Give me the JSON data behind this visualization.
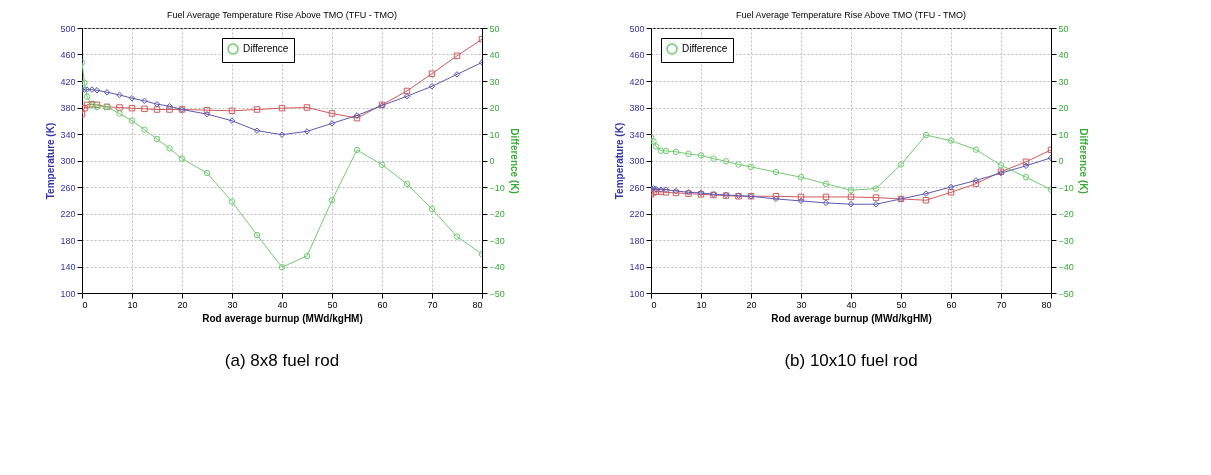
{
  "chart_data": [
    {
      "type": "line",
      "title": "Fuel Average Temperature Rise Above TMO (TFU - TMO)",
      "xlabel": "Rod average burnup (MWd/kgHM)",
      "ylabel": "Temperature (K)",
      "y2label": "Difference (K)",
      "x": [
        0,
        0.5,
        1,
        2,
        3,
        5,
        7.5,
        10,
        12.5,
        15,
        17.5,
        20,
        25,
        30,
        35,
        40,
        45,
        50,
        55,
        60,
        65,
        70,
        75,
        80
      ],
      "xlim": [
        0,
        80
      ],
      "xticks": [
        0,
        10,
        20,
        30,
        40,
        50,
        60,
        70,
        80
      ],
      "ylim": [
        100,
        500
      ],
      "yticks": [
        100,
        140,
        180,
        220,
        260,
        300,
        340,
        380,
        420,
        460,
        500
      ],
      "y2lim": [
        -50,
        50
      ],
      "y2ticks": [
        -50,
        -40,
        -30,
        -20,
        -10,
        0,
        10,
        20,
        30,
        40,
        50
      ],
      "grid": true,
      "legend": "top",
      "line_style": "solid",
      "series": [
        {
          "color": "#d05a5a",
          "marker": "square",
          "values": [
            370,
            379,
            384,
            385,
            384,
            381,
            380,
            379,
            378,
            377,
            377,
            377,
            376,
            375,
            377,
            379,
            380,
            371,
            364,
            384,
            405,
            431,
            458,
            483
          ]
        },
        {
          "color": "#5a5ab4",
          "marker": "diamond",
          "values": [
            407,
            407,
            407,
            407,
            406,
            403,
            399,
            394,
            390,
            385,
            382,
            377,
            370,
            360,
            345,
            339,
            344,
            356,
            368,
            383,
            397,
            412,
            430,
            448
          ]
        },
        {
          "name": "Difference",
          "color": "#70cc70",
          "marker": "circle",
          "axis": "y2",
          "values": [
            37,
            29.3,
            24.1,
            21,
            20.2,
            20.2,
            17.7,
            15,
            11.6,
            8.1,
            4.6,
            0.7,
            -4.7,
            -15.5,
            -28.1,
            -40.3,
            -36,
            -15,
            4,
            -1.6,
            -8.8,
            -18.3,
            -28.7,
            -35.3
          ]
        }
      ],
      "annotations": [
        "(a) 8x8 fuel rod"
      ]
    },
    {
      "type": "line",
      "title": "Fuel Average Temperature Rise Above TMO (TFU - TMO)",
      "xlabel": "Rod average burnup (MWd/kgHM)",
      "ylabel": "Temperature (K)",
      "y2label": "Difference (K)",
      "x": [
        0,
        0.5,
        1,
        2,
        3,
        5,
        7.5,
        10,
        12.5,
        15,
        17.5,
        20,
        25,
        30,
        35,
        40,
        45,
        50,
        55,
        60,
        65,
        70,
        75,
        80
      ],
      "xlim": [
        0,
        80
      ],
      "xticks": [
        0,
        10,
        20,
        30,
        40,
        50,
        60,
        70,
        80
      ],
      "ylim": [
        100,
        500
      ],
      "yticks": [
        100,
        140,
        180,
        220,
        260,
        300,
        340,
        380,
        420,
        460,
        500
      ],
      "y2lim": [
        -50,
        50
      ],
      "y2ticks": [
        -50,
        -40,
        -30,
        -20,
        -10,
        0,
        10,
        20,
        30,
        40,
        50
      ],
      "grid": true,
      "legend": "top left",
      "line_style": "solid",
      "series": [
        {
          "color": "#d05a5a",
          "marker": "square",
          "values": [
            249,
            252,
            253,
            253,
            252,
            251,
            250,
            249,
            248,
            247,
            246,
            246,
            246,
            245,
            245,
            245,
            244,
            242,
            240,
            252,
            265,
            283,
            298,
            316
          ]
        },
        {
          "color": "#5a5ab4",
          "marker": "diamond",
          "values": [
            258,
            258,
            257,
            256,
            256,
            254,
            252,
            251,
            249,
            248,
            247,
            246,
            242,
            239,
            236,
            234,
            234,
            242,
            250,
            260,
            270,
            281,
            292,
            304
          ]
        },
        {
          "name": "Difference",
          "color": "#70cc70",
          "marker": "circle",
          "axis": "y2",
          "values": [
            8.7,
            7.2,
            5.3,
            3.7,
            3.6,
            3.3,
            2.5,
            1.9,
            0.7,
            -0.3,
            -1.5,
            -2.4,
            -4.4,
            -6.3,
            -8.8,
            -11.2,
            -10.6,
            -1.5,
            9.6,
            7.5,
            4.1,
            -1.8,
            -6.3,
            -11
          ]
        }
      ],
      "annotations": [
        "(b) 10x10 fuel rod"
      ]
    }
  ]
}
